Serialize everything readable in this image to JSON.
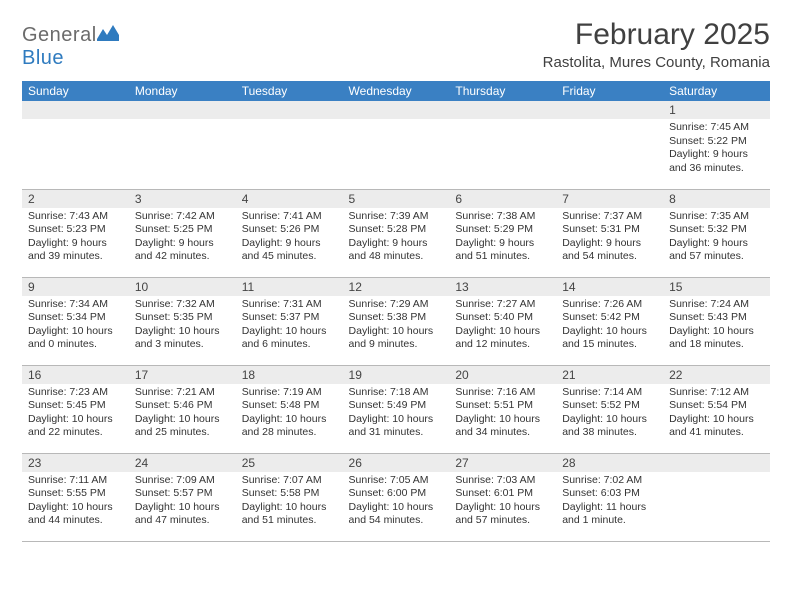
{
  "brand": {
    "word1": "General",
    "word2": "Blue"
  },
  "title": "February 2025",
  "location": "Rastolita, Mures County, Romania",
  "colors": {
    "header_bg": "#3a80c3",
    "header_text": "#ffffff",
    "numbar_bg": "#ececec",
    "rule": "#b8b8b8",
    "logo_gray": "#6b6b6b",
    "logo_blue": "#2f7bbf"
  },
  "day_headers": [
    "Sunday",
    "Monday",
    "Tuesday",
    "Wednesday",
    "Thursday",
    "Friday",
    "Saturday"
  ],
  "weeks": [
    [
      {
        "n": "",
        "body": ""
      },
      {
        "n": "",
        "body": ""
      },
      {
        "n": "",
        "body": ""
      },
      {
        "n": "",
        "body": ""
      },
      {
        "n": "",
        "body": ""
      },
      {
        "n": "",
        "body": ""
      },
      {
        "n": "1",
        "body": "Sunrise: 7:45 AM\nSunset: 5:22 PM\nDaylight: 9 hours and 36 minutes."
      }
    ],
    [
      {
        "n": "2",
        "body": "Sunrise: 7:43 AM\nSunset: 5:23 PM\nDaylight: 9 hours and 39 minutes."
      },
      {
        "n": "3",
        "body": "Sunrise: 7:42 AM\nSunset: 5:25 PM\nDaylight: 9 hours and 42 minutes."
      },
      {
        "n": "4",
        "body": "Sunrise: 7:41 AM\nSunset: 5:26 PM\nDaylight: 9 hours and 45 minutes."
      },
      {
        "n": "5",
        "body": "Sunrise: 7:39 AM\nSunset: 5:28 PM\nDaylight: 9 hours and 48 minutes."
      },
      {
        "n": "6",
        "body": "Sunrise: 7:38 AM\nSunset: 5:29 PM\nDaylight: 9 hours and 51 minutes."
      },
      {
        "n": "7",
        "body": "Sunrise: 7:37 AM\nSunset: 5:31 PM\nDaylight: 9 hours and 54 minutes."
      },
      {
        "n": "8",
        "body": "Sunrise: 7:35 AM\nSunset: 5:32 PM\nDaylight: 9 hours and 57 minutes."
      }
    ],
    [
      {
        "n": "9",
        "body": "Sunrise: 7:34 AM\nSunset: 5:34 PM\nDaylight: 10 hours and 0 minutes."
      },
      {
        "n": "10",
        "body": "Sunrise: 7:32 AM\nSunset: 5:35 PM\nDaylight: 10 hours and 3 minutes."
      },
      {
        "n": "11",
        "body": "Sunrise: 7:31 AM\nSunset: 5:37 PM\nDaylight: 10 hours and 6 minutes."
      },
      {
        "n": "12",
        "body": "Sunrise: 7:29 AM\nSunset: 5:38 PM\nDaylight: 10 hours and 9 minutes."
      },
      {
        "n": "13",
        "body": "Sunrise: 7:27 AM\nSunset: 5:40 PM\nDaylight: 10 hours and 12 minutes."
      },
      {
        "n": "14",
        "body": "Sunrise: 7:26 AM\nSunset: 5:42 PM\nDaylight: 10 hours and 15 minutes."
      },
      {
        "n": "15",
        "body": "Sunrise: 7:24 AM\nSunset: 5:43 PM\nDaylight: 10 hours and 18 minutes."
      }
    ],
    [
      {
        "n": "16",
        "body": "Sunrise: 7:23 AM\nSunset: 5:45 PM\nDaylight: 10 hours and 22 minutes."
      },
      {
        "n": "17",
        "body": "Sunrise: 7:21 AM\nSunset: 5:46 PM\nDaylight: 10 hours and 25 minutes."
      },
      {
        "n": "18",
        "body": "Sunrise: 7:19 AM\nSunset: 5:48 PM\nDaylight: 10 hours and 28 minutes."
      },
      {
        "n": "19",
        "body": "Sunrise: 7:18 AM\nSunset: 5:49 PM\nDaylight: 10 hours and 31 minutes."
      },
      {
        "n": "20",
        "body": "Sunrise: 7:16 AM\nSunset: 5:51 PM\nDaylight: 10 hours and 34 minutes."
      },
      {
        "n": "21",
        "body": "Sunrise: 7:14 AM\nSunset: 5:52 PM\nDaylight: 10 hours and 38 minutes."
      },
      {
        "n": "22",
        "body": "Sunrise: 7:12 AM\nSunset: 5:54 PM\nDaylight: 10 hours and 41 minutes."
      }
    ],
    [
      {
        "n": "23",
        "body": "Sunrise: 7:11 AM\nSunset: 5:55 PM\nDaylight: 10 hours and 44 minutes."
      },
      {
        "n": "24",
        "body": "Sunrise: 7:09 AM\nSunset: 5:57 PM\nDaylight: 10 hours and 47 minutes."
      },
      {
        "n": "25",
        "body": "Sunrise: 7:07 AM\nSunset: 5:58 PM\nDaylight: 10 hours and 51 minutes."
      },
      {
        "n": "26",
        "body": "Sunrise: 7:05 AM\nSunset: 6:00 PM\nDaylight: 10 hours and 54 minutes."
      },
      {
        "n": "27",
        "body": "Sunrise: 7:03 AM\nSunset: 6:01 PM\nDaylight: 10 hours and 57 minutes."
      },
      {
        "n": "28",
        "body": "Sunrise: 7:02 AM\nSunset: 6:03 PM\nDaylight: 11 hours and 1 minute."
      },
      {
        "n": "",
        "body": ""
      }
    ]
  ]
}
